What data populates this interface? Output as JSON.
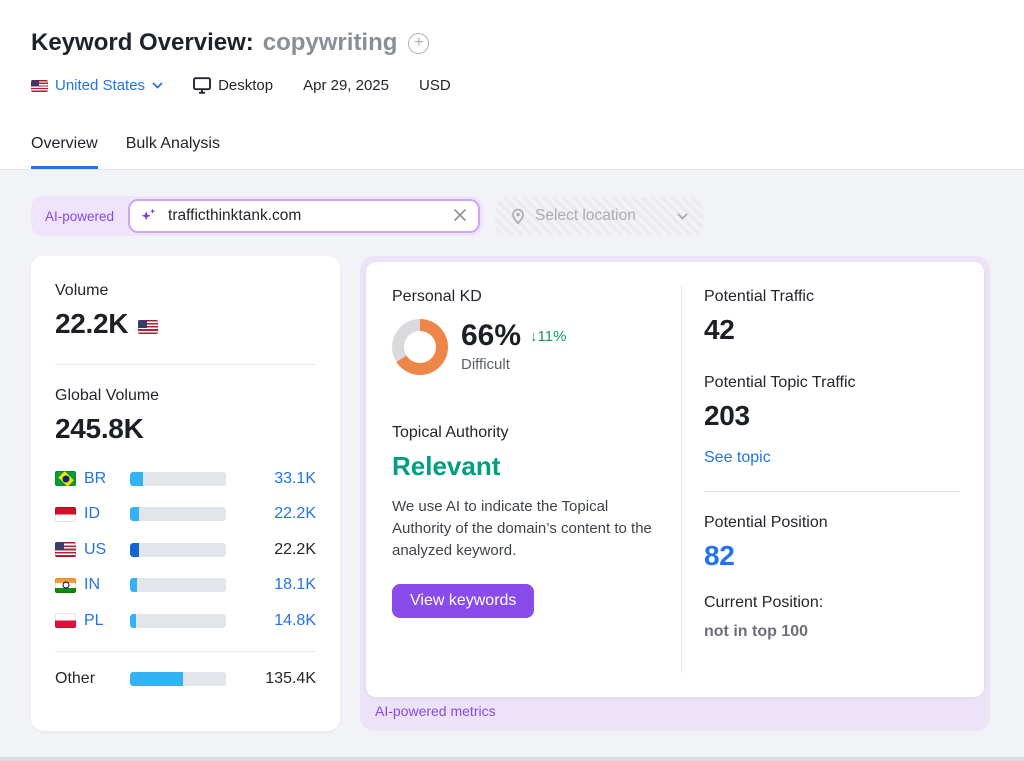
{
  "header": {
    "title": "Keyword Overview:",
    "keyword": "copywriting",
    "database": "United States",
    "device": "Desktop",
    "date": "Apr 29, 2025",
    "currency": "USD"
  },
  "tabs": [
    {
      "label": "Overview",
      "active": true
    },
    {
      "label": "Bulk Analysis",
      "active": false
    }
  ],
  "search": {
    "badge": "AI-powered",
    "value": "trafficthinktank.com",
    "location_placeholder": "Select location"
  },
  "volume_card": {
    "volume_label": "Volume",
    "volume_value": "22.2K",
    "volume_flag": "US",
    "global_label": "Global Volume",
    "global_value": "245.8K",
    "countries": [
      {
        "code": "BR",
        "value": "33.1K",
        "share_pct": 13.5,
        "link": true,
        "current": false
      },
      {
        "code": "ID",
        "value": "22.2K",
        "share_pct": 9.0,
        "link": true,
        "current": false
      },
      {
        "code": "US",
        "value": "22.2K",
        "share_pct": 9.0,
        "link": false,
        "current": true
      },
      {
        "code": "IN",
        "value": "18.1K",
        "share_pct": 7.4,
        "link": true,
        "current": false
      },
      {
        "code": "PL",
        "value": "14.8K",
        "share_pct": 6.0,
        "link": true,
        "current": false
      }
    ],
    "other": {
      "label": "Other",
      "value": "135.4K",
      "share_pct": 55
    }
  },
  "kd_card": {
    "label": "Personal KD",
    "value": "66%",
    "percent": 66,
    "change": "↓11%",
    "difficulty": "Difficult",
    "donut_color": "#ef8649",
    "donut_track": "#d9dade"
  },
  "topical": {
    "label": "Topical Authority",
    "value": "Relevant",
    "description": "We use AI to indicate the Topical Authority of the domain’s content to the analyzed keyword.",
    "button": "View keywords"
  },
  "potential": {
    "traffic_label": "Potential Traffic",
    "traffic_value": "42",
    "topic_traffic_label": "Potential Topic Traffic",
    "topic_traffic_value": "203",
    "see_topic": "See topic",
    "position_label": "Potential Position",
    "position_value": "82",
    "current_label": "Current Position:",
    "current_value": "not in top 100"
  },
  "footer_badge": "AI-powered metrics",
  "colors": {
    "accent_blue": "#2173e8",
    "accent_purple": "#8a4beb",
    "kd_orange": "#ef8649",
    "green_positive": "#149a5c",
    "topical_green": "#009f81",
    "bar_light_blue": "#33b3f3",
    "bar_dark_blue": "#1564d2",
    "ai_badge_bg": "#f0e4fd",
    "ai_wrap_bg": "#ece3f9"
  }
}
